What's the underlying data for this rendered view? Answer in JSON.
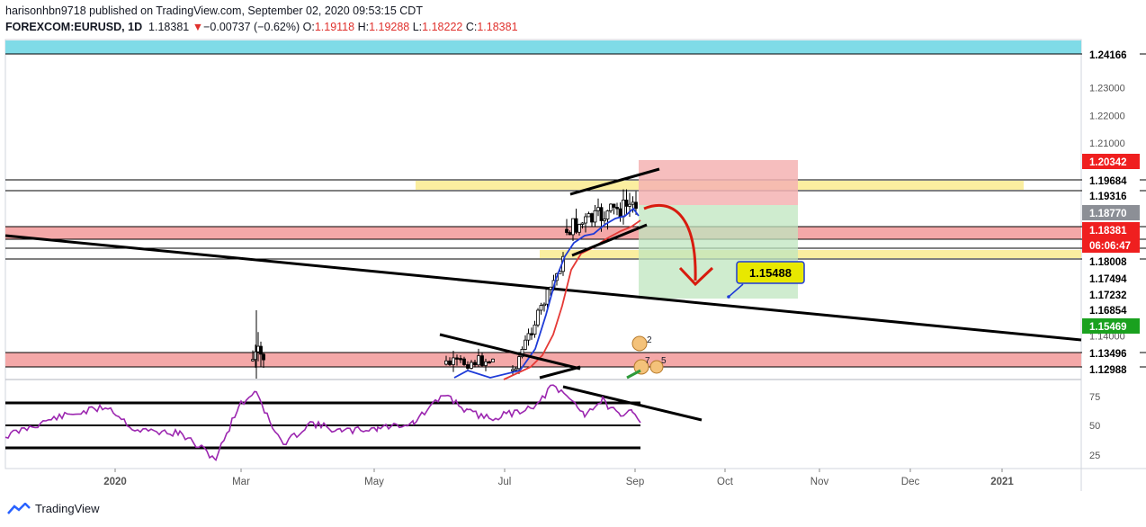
{
  "header": {
    "line1": "harisonhbn9718 published on TradingView.com, September 02, 2020 09:53:15 CDT",
    "symbol": "FOREXCOM:EURUSD, 1D",
    "last": "1.18381",
    "change_arrow": "▼",
    "change": "−0.00737 (−0.62%)",
    "o_label": "O:",
    "o": "1.19118",
    "h_label": "H:",
    "h": "1.19288",
    "l_label": "L:",
    "l": "1.18222",
    "c_label": "C:",
    "c": "1.18381"
  },
  "footer": {
    "brand": "TradingView"
  },
  "colors": {
    "up": "#26a69a",
    "down": "#ef5350",
    "ma_fast": "#1e3bd8",
    "ma_slow": "#e53935",
    "rsi": "#9c27b0",
    "cyan_band": "#7fdbe7",
    "red_band": "#f4a8a8",
    "yellow_band": "#fbeea0"
  },
  "chart_data": {
    "type": "candlestick",
    "symbol": "FOREXCOM:EURUSD",
    "interval": "1D",
    "price_ticks": [
      "1.23000",
      "1.22000",
      "1.21000",
      "1.14000"
    ],
    "price_labels": [
      {
        "value": "1.24166",
        "style": "plain"
      },
      {
        "value": "1.20342",
        "style": "red"
      },
      {
        "value": "1.19684",
        "style": "plain"
      },
      {
        "value": "1.19316",
        "style": "plain"
      },
      {
        "value": "1.18770",
        "style": "gray"
      },
      {
        "value": "1.18381",
        "style": "red"
      },
      {
        "value": "06:06:47",
        "style": "red"
      },
      {
        "value": "1.18008",
        "style": "plain"
      },
      {
        "value": "1.17494",
        "style": "plain"
      },
      {
        "value": "1.17232",
        "style": "plain"
      },
      {
        "value": "1.16854",
        "style": "plain"
      },
      {
        "value": "1.15469",
        "style": "green"
      },
      {
        "value": "1.13496",
        "style": "plain"
      },
      {
        "value": "1.12988",
        "style": "plain"
      }
    ],
    "rsi_ticks": [
      "75",
      "50",
      "25"
    ],
    "time_labels": [
      "2020",
      "Mar",
      "May",
      "Jul",
      "Sep",
      "Oct",
      "Nov",
      "Dec",
      "2021"
    ],
    "target_label": "1.15488",
    "event_badges": [
      "2",
      "7",
      "5"
    ]
  }
}
